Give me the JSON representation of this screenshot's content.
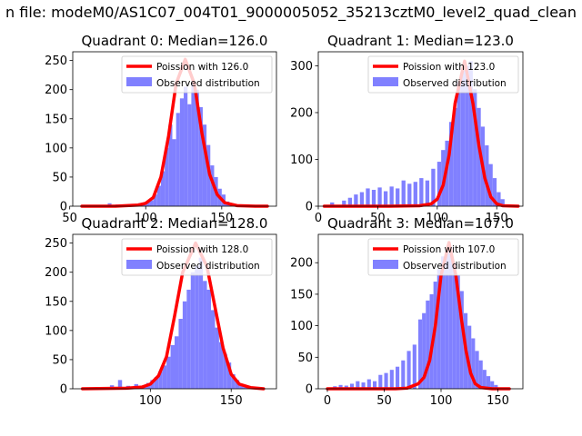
{
  "suptitle": "n file: modeM0/AS1C07_004T01_9000005052_35213cztM0_level2_quad_clean",
  "colors": {
    "hist": "#8080ff",
    "poisson": "#ff0000",
    "axes": "#000000",
    "background": "#ffffff"
  },
  "chart_data": [
    {
      "type": "bar",
      "title": "Quadrant 0: Median=126.0",
      "median": 126.0,
      "xlim": [
        52,
        186
      ],
      "ylim": [
        0,
        265
      ],
      "xticks": [
        50,
        100,
        150
      ],
      "yticks": [
        0,
        50,
        100,
        150,
        200,
        250
      ],
      "legend": {
        "location": "top-right",
        "entries": [
          "Poission with 126.0",
          "Observed distribution"
        ]
      },
      "poisson": {
        "name": "Poission with 126.0",
        "x": [
          58,
          80,
          95,
          100,
          105,
          110,
          115,
          120,
          126,
          132,
          137,
          142,
          147,
          152,
          160,
          172,
          180
        ],
        "y": [
          0,
          0,
          2,
          5,
          15,
          50,
          120,
          210,
          252,
          210,
          125,
          55,
          20,
          6,
          1,
          0,
          0
        ]
      },
      "histogram": {
        "name": "Observed distribution",
        "bin_width": 2.5,
        "bins": [
          [
            75,
            5
          ],
          [
            80,
            3
          ],
          [
            85,
            2
          ],
          [
            90,
            4
          ],
          [
            95,
            5
          ],
          [
            97.5,
            6
          ],
          [
            100,
            8
          ],
          [
            102.5,
            10
          ],
          [
            105,
            20
          ],
          [
            107.5,
            35
          ],
          [
            110,
            60
          ],
          [
            112.5,
            100
          ],
          [
            115,
            140
          ],
          [
            117.5,
            115
          ],
          [
            120,
            160
          ],
          [
            122.5,
            185
          ],
          [
            125,
            205
          ],
          [
            127.5,
            175
          ],
          [
            130,
            215
          ],
          [
            132.5,
            200
          ],
          [
            135,
            170
          ],
          [
            137.5,
            140
          ],
          [
            140,
            105
          ],
          [
            142.5,
            70
          ],
          [
            145,
            50
          ],
          [
            147.5,
            30
          ],
          [
            150,
            20
          ],
          [
            152.5,
            8
          ],
          [
            155,
            4
          ],
          [
            157.5,
            2
          ]
        ]
      }
    },
    {
      "type": "bar",
      "title": "Quadrant 1: Median=123.0",
      "median": 123.0,
      "xlim": [
        0,
        172
      ],
      "ylim": [
        0,
        330
      ],
      "xticks": [
        0,
        50,
        100,
        150
      ],
      "yticks": [
        0,
        100,
        200,
        300
      ],
      "legend": {
        "location": "top-right",
        "entries": [
          "Poission with 123.0",
          "Observed distribution"
        ]
      },
      "poisson": {
        "name": "Poission with 123.0",
        "x": [
          5,
          60,
          85,
          95,
          100,
          105,
          110,
          115,
          123,
          130,
          135,
          140,
          145,
          150,
          155,
          168
        ],
        "y": [
          0,
          0,
          1,
          5,
          15,
          45,
          110,
          220,
          310,
          220,
          130,
          60,
          20,
          5,
          1,
          0
        ]
      },
      "histogram": {
        "name": "Observed distribution",
        "bin_width": 3.3,
        "bins": [
          [
            10,
            8
          ],
          [
            20,
            12
          ],
          [
            25,
            18
          ],
          [
            30,
            25
          ],
          [
            35,
            30
          ],
          [
            40,
            38
          ],
          [
            45,
            35
          ],
          [
            50,
            40
          ],
          [
            55,
            32
          ],
          [
            60,
            42
          ],
          [
            65,
            38
          ],
          [
            70,
            55
          ],
          [
            75,
            48
          ],
          [
            80,
            52
          ],
          [
            85,
            60
          ],
          [
            90,
            55
          ],
          [
            95,
            80
          ],
          [
            100,
            95
          ],
          [
            103.3,
            120
          ],
          [
            106.6,
            140
          ],
          [
            110,
            180
          ],
          [
            113.3,
            210
          ],
          [
            116.6,
            265
          ],
          [
            120,
            290
          ],
          [
            123.3,
            300
          ],
          [
            126.6,
            310
          ],
          [
            130,
            250
          ],
          [
            133.3,
            210
          ],
          [
            136.6,
            170
          ],
          [
            140,
            130
          ],
          [
            143.3,
            90
          ],
          [
            146.6,
            60
          ],
          [
            150,
            30
          ],
          [
            153.3,
            15
          ]
        ]
      }
    },
    {
      "type": "bar",
      "title": "Quadrant 2: Median=128.0",
      "median": 128.0,
      "xlim": [
        52,
        178
      ],
      "ylim": [
        0,
        265
      ],
      "xticks": [
        100,
        150
      ],
      "yticks": [
        0,
        50,
        100,
        150,
        200,
        250
      ],
      "legend": {
        "location": "top-right",
        "entries": [
          "Poission with 128.0",
          "Observed distribution"
        ]
      },
      "poisson": {
        "name": "Poission with 128.0",
        "x": [
          58,
          85,
          95,
          100,
          105,
          110,
          115,
          120,
          128,
          135,
          140,
          145,
          150,
          155,
          162,
          170
        ],
        "y": [
          0,
          1,
          3,
          8,
          22,
          55,
          125,
          200,
          250,
          210,
          140,
          70,
          25,
          8,
          2,
          0
        ]
      },
      "histogram": {
        "name": "Observed distribution",
        "bin_width": 2.5,
        "bins": [
          [
            75,
            6
          ],
          [
            80,
            15
          ],
          [
            85,
            5
          ],
          [
            90,
            8
          ],
          [
            95,
            5
          ],
          [
            97.5,
            10
          ],
          [
            100,
            15
          ],
          [
            102.5,
            20
          ],
          [
            105,
            30
          ],
          [
            107.5,
            40
          ],
          [
            110,
            55
          ],
          [
            112.5,
            75
          ],
          [
            115,
            90
          ],
          [
            117.5,
            120
          ],
          [
            120,
            150
          ],
          [
            122.5,
            170
          ],
          [
            125,
            200
          ],
          [
            127.5,
            210
          ],
          [
            130,
            225
          ],
          [
            132.5,
            185
          ],
          [
            135,
            170
          ],
          [
            137.5,
            135
          ],
          [
            140,
            105
          ],
          [
            142.5,
            80
          ],
          [
            145,
            60
          ],
          [
            147.5,
            45
          ],
          [
            150,
            25
          ],
          [
            152.5,
            15
          ],
          [
            155,
            8
          ],
          [
            157.5,
            3
          ]
        ]
      }
    },
    {
      "type": "bar",
      "title": "Quadrant 3: Median=107.0",
      "median": 107.0,
      "xlim": [
        -8,
        172
      ],
      "ylim": [
        0,
        245
      ],
      "xticks": [
        0,
        50,
        100,
        150
      ],
      "yticks": [
        0,
        50,
        100,
        150,
        200
      ],
      "legend": {
        "location": "top-right",
        "entries": [
          "Poission with 107.0",
          "Observed distribution"
        ]
      },
      "poisson": {
        "name": "Poission with 107.0",
        "x": [
          0,
          60,
          70,
          80,
          85,
          90,
          95,
          100,
          107,
          113,
          118,
          122,
          126,
          130,
          135,
          145,
          160
        ],
        "y": [
          0,
          0,
          1,
          8,
          18,
          45,
          100,
          180,
          232,
          180,
          110,
          60,
          25,
          8,
          2,
          0,
          0
        ]
      },
      "histogram": {
        "name": "Observed distribution",
        "bin_width": 3.3,
        "bins": [
          [
            5,
            4
          ],
          [
            10,
            6
          ],
          [
            15,
            5
          ],
          [
            20,
            8
          ],
          [
            25,
            12
          ],
          [
            30,
            10
          ],
          [
            35,
            15
          ],
          [
            40,
            12
          ],
          [
            45,
            22
          ],
          [
            50,
            25
          ],
          [
            55,
            30
          ],
          [
            60,
            35
          ],
          [
            65,
            45
          ],
          [
            70,
            60
          ],
          [
            75,
            70
          ],
          [
            80,
            110
          ],
          [
            83.3,
            120
          ],
          [
            86.6,
            140
          ],
          [
            90,
            150
          ],
          [
            93.3,
            170
          ],
          [
            96.6,
            190
          ],
          [
            100,
            210
          ],
          [
            103.3,
            215
          ],
          [
            106.6,
            225
          ],
          [
            110,
            200
          ],
          [
            113.3,
            180
          ],
          [
            116.6,
            155
          ],
          [
            120,
            120
          ],
          [
            123.3,
            100
          ],
          [
            126.6,
            80
          ],
          [
            130,
            60
          ],
          [
            133.3,
            45
          ],
          [
            136.6,
            30
          ],
          [
            140,
            20
          ],
          [
            143.3,
            12
          ],
          [
            146.6,
            6
          ]
        ]
      }
    }
  ]
}
